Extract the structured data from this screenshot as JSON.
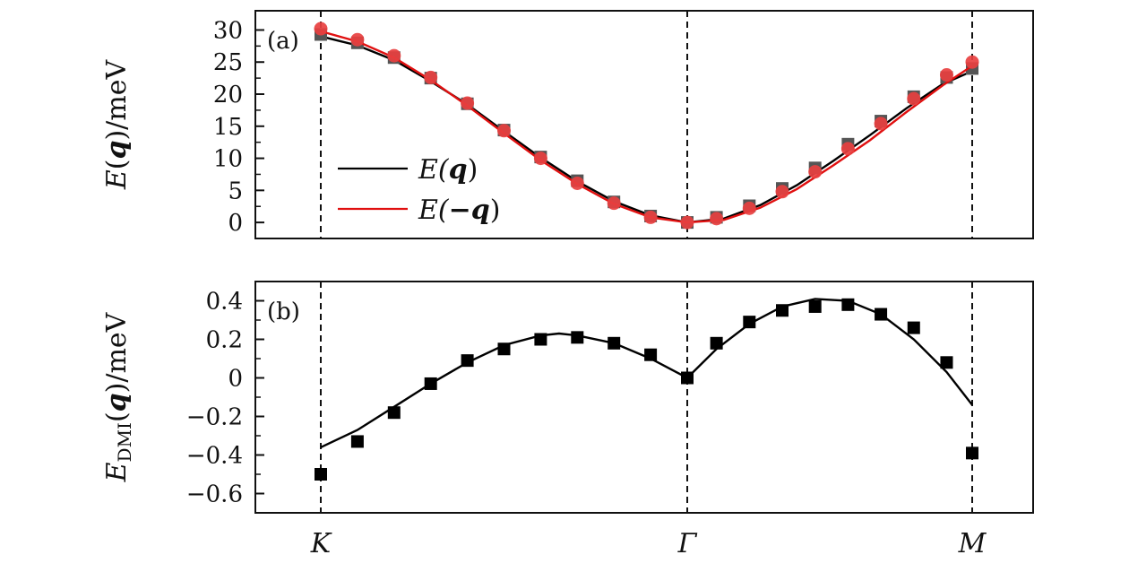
{
  "chart_data": [
    {
      "panel": "(a)",
      "type": "line",
      "ylabel": {
        "symbol": "E",
        "arg": "q",
        "unit": "/meV"
      },
      "ylim": [
        -2.5,
        33
      ],
      "yticks": [
        0,
        5,
        10,
        15,
        20,
        25,
        30
      ],
      "ytick_labels": [
        "0",
        "5",
        "10",
        "15",
        "20",
        "25",
        "30"
      ],
      "xlim": [
        -0.05,
        1.85
      ],
      "x_markers": [
        0,
        1.0,
        1.78
      ],
      "legend": {
        "position": "lower-left",
        "entries": [
          {
            "label_prefix": "E(",
            "label_bold": "q",
            "label_suffix": ")",
            "color": "#000000"
          },
          {
            "label_prefix": "E(",
            "label_bold": "−q",
            "label_suffix": ")",
            "color": "#e01010"
          }
        ]
      },
      "series": [
        {
          "name": "E(q)",
          "kind": "line+squares",
          "line_color": "#000000",
          "marker_color": "#555555",
          "line_x": [
            0,
            0.1,
            0.2,
            0.3,
            0.4,
            0.5,
            0.6,
            0.7,
            0.8,
            0.9,
            1.0,
            1.1,
            1.2,
            1.3,
            1.4,
            1.5,
            1.6,
            1.7,
            1.78
          ],
          "line_y": [
            29.0,
            27.6,
            25.3,
            22.0,
            18.4,
            14.2,
            10.1,
            6.4,
            3.3,
            1.1,
            0.0,
            0.6,
            2.7,
            5.8,
            9.6,
            13.6,
            17.8,
            21.6,
            23.6
          ],
          "markers_x": [
            0,
            0.1,
            0.2,
            0.3,
            0.4,
            0.5,
            0.6,
            0.7,
            0.8,
            0.9,
            1.0,
            1.08,
            1.17,
            1.26,
            1.35,
            1.44,
            1.53,
            1.62,
            1.71,
            1.78
          ],
          "markers_y": [
            29.3,
            28.0,
            25.7,
            22.5,
            18.5,
            14.4,
            10.2,
            6.5,
            3.2,
            1.0,
            0.0,
            0.8,
            2.6,
            5.3,
            8.5,
            12.2,
            15.8,
            19.6,
            22.6,
            24.0
          ]
        },
        {
          "name": "E(−q)",
          "kind": "line+circles",
          "line_color": "#e01010",
          "marker_color": "#e84040",
          "line_x": [
            0,
            0.1,
            0.2,
            0.3,
            0.4,
            0.5,
            0.6,
            0.7,
            0.8,
            0.9,
            1.0,
            1.1,
            1.2,
            1.3,
            1.4,
            1.5,
            1.6,
            1.7,
            1.78
          ],
          "line_y": [
            29.8,
            28.2,
            25.7,
            22.2,
            18.2,
            13.9,
            9.7,
            6.0,
            2.9,
            0.8,
            0.0,
            0.4,
            2.3,
            5.2,
            8.9,
            12.8,
            17.2,
            21.4,
            24.4
          ],
          "markers_x": [
            0,
            0.1,
            0.2,
            0.3,
            0.4,
            0.5,
            0.6,
            0.7,
            0.8,
            0.9,
            1.0,
            1.08,
            1.17,
            1.26,
            1.35,
            1.44,
            1.53,
            1.62,
            1.71,
            1.78
          ],
          "markers_y": [
            30.2,
            28.5,
            26.0,
            22.6,
            18.6,
            14.3,
            10.0,
            6.1,
            3.0,
            0.8,
            0.0,
            0.6,
            2.2,
            4.8,
            7.9,
            11.5,
            15.4,
            19.3,
            23.0,
            25.0
          ]
        }
      ]
    },
    {
      "panel": "(b)",
      "type": "line",
      "ylabel": {
        "symbol": "E",
        "sub": "DMI",
        "arg": "q",
        "unit": "/meV"
      },
      "ylim": [
        -0.7,
        0.5
      ],
      "yticks": [
        -0.6,
        -0.4,
        -0.2,
        0,
        0.2,
        0.4
      ],
      "ytick_labels": [
        "−0.6",
        "−0.4",
        "−0.2",
        "0",
        "0.2",
        "0.4"
      ],
      "xlim": [
        -0.05,
        1.85
      ],
      "x_markers": [
        0,
        1.0,
        1.78
      ],
      "xtick_labels": [
        "K",
        "Γ",
        "M"
      ],
      "series": [
        {
          "name": "E_DMI(q)",
          "kind": "line+squares",
          "line_color": "#000000",
          "marker_color": "#000000",
          "line_x": [
            0,
            0.1,
            0.2,
            0.3,
            0.4,
            0.5,
            0.6,
            0.65,
            0.7,
            0.8,
            0.9,
            1.0,
            1.08,
            1.17,
            1.26,
            1.35,
            1.44,
            1.53,
            1.62,
            1.71,
            1.78
          ],
          "line_y": [
            -0.36,
            -0.27,
            -0.15,
            -0.03,
            0.08,
            0.17,
            0.22,
            0.23,
            0.22,
            0.18,
            0.1,
            0.0,
            0.15,
            0.28,
            0.37,
            0.41,
            0.4,
            0.33,
            0.2,
            0.03,
            -0.14
          ],
          "markers_x": [
            0,
            0.1,
            0.2,
            0.3,
            0.4,
            0.5,
            0.6,
            0.7,
            0.8,
            0.9,
            1.0,
            1.08,
            1.17,
            1.26,
            1.35,
            1.44,
            1.53,
            1.62,
            1.71,
            1.78
          ],
          "markers_y": [
            -0.5,
            -0.33,
            -0.18,
            -0.03,
            0.09,
            0.15,
            0.2,
            0.21,
            0.18,
            0.12,
            0.0,
            0.18,
            0.29,
            0.35,
            0.37,
            0.38,
            0.33,
            0.26,
            0.08,
            -0.39
          ]
        }
      ]
    }
  ]
}
